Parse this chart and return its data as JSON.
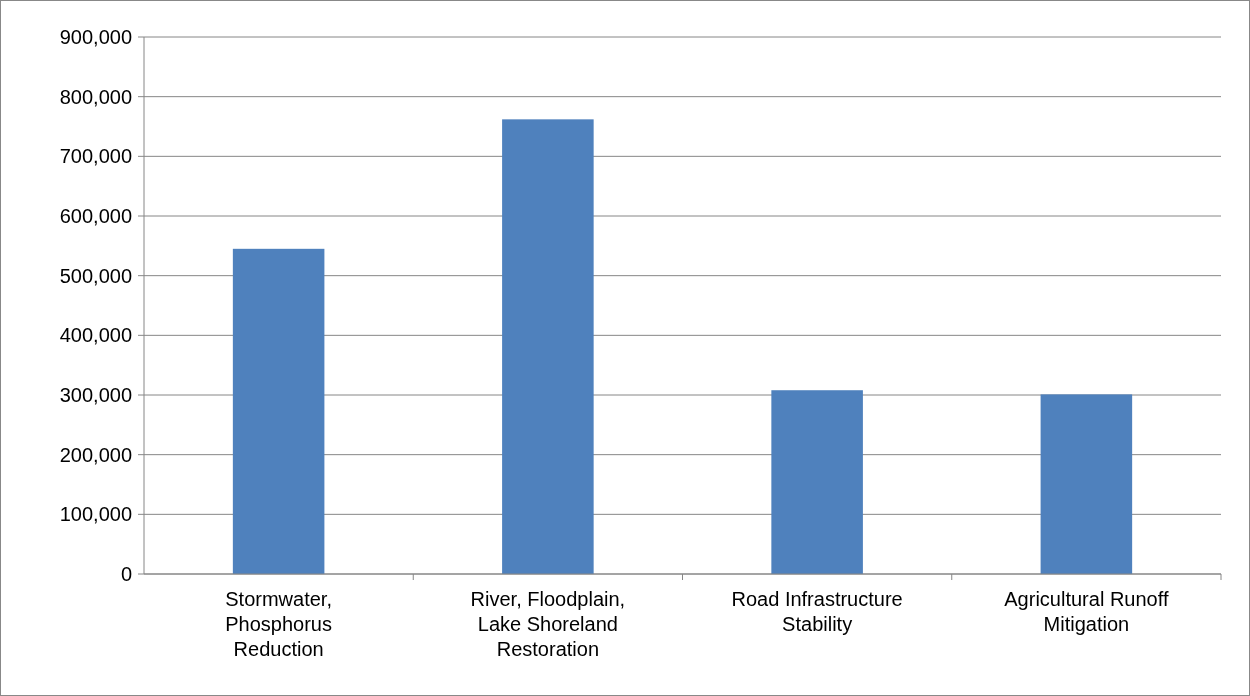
{
  "chart_data": {
    "type": "bar",
    "categories": [
      "Stormwater, Phosphorus Reduction",
      "River, Floodplain, Lake Shoreland Restoration",
      "Road Infrastructure Stability",
      "Agricultural Runoff Mitigation"
    ],
    "values": [
      545000,
      762000,
      308000,
      301000
    ],
    "color": "#4f81bd",
    "ylim": [
      0,
      900000
    ],
    "yticks": [
      {
        "value": 0,
        "label": "0"
      },
      {
        "value": 100000,
        "label": "100,000"
      },
      {
        "value": 200000,
        "label": "200,000"
      },
      {
        "value": 300000,
        "label": "300,000"
      },
      {
        "value": 400000,
        "label": "400,000"
      },
      {
        "value": 500000,
        "label": "500,000"
      },
      {
        "value": 600000,
        "label": "600,000"
      },
      {
        "value": 700000,
        "label": "700,000"
      },
      {
        "value": 800000,
        "label": "800,000"
      },
      {
        "value": 900000,
        "label": "900,000"
      }
    ],
    "grid": "y"
  }
}
